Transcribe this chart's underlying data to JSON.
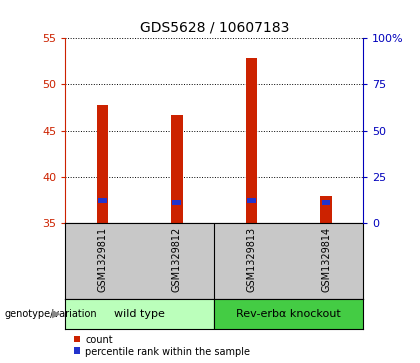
{
  "title": "GDS5628 / 10607183",
  "samples": [
    "GSM1329811",
    "GSM1329812",
    "GSM1329813",
    "GSM1329814"
  ],
  "group_labels": [
    "wild type",
    "Rev-erbα knockout"
  ],
  "count_values": [
    47.8,
    46.7,
    52.8,
    37.9
  ],
  "percentile_values": [
    37.5,
    37.2,
    37.5,
    37.2
  ],
  "base_value": 35,
  "ylim_left": [
    35,
    55
  ],
  "ylim_right": [
    0,
    100
  ],
  "yticks_left": [
    35,
    40,
    45,
    50,
    55
  ],
  "yticks_right": [
    0,
    25,
    50,
    75,
    100
  ],
  "bar_width": 0.15,
  "blue_bar_width": 0.12,
  "blue_bar_height": 0.55,
  "count_color": "#cc2200",
  "percentile_color": "#2233cc",
  "left_tick_color": "#cc2200",
  "right_tick_color": "#0000bb",
  "sample_bg_color": "#c8c8c8",
  "wt_color": "#bbffbb",
  "ko_color": "#44cc44",
  "legend_count": "count",
  "legend_pct": "percentile rank within the sample",
  "fig_width": 4.2,
  "fig_height": 3.63,
  "dpi": 100
}
